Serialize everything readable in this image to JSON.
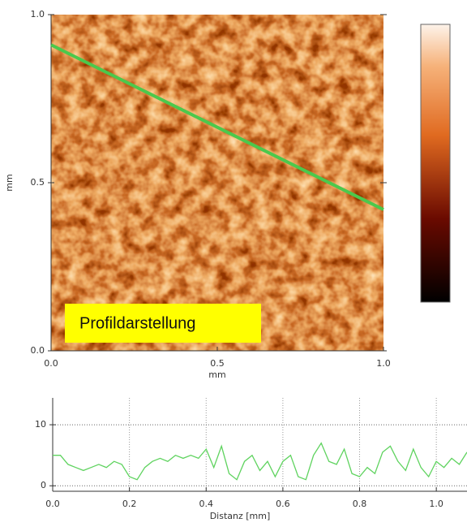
{
  "chart_data": [
    {
      "type": "heatmap",
      "xlabel": "mm",
      "ylabel": "mm",
      "xlim": [
        0,
        1
      ],
      "ylim": [
        0,
        1
      ],
      "xticks": [
        {
          "value": 0,
          "label": "0.0"
        },
        0.5,
        {
          "value": 1,
          "label": "1.0"
        }
      ],
      "yticks": [
        {
          "value": 0,
          "label": "0.0"
        },
        0.5,
        {
          "value": 1,
          "label": "1.0"
        }
      ],
      "line": {
        "color": "#4cc84c",
        "x": [
          0,
          1
        ],
        "y": [
          0.91,
          0.42
        ]
      },
      "annotation": "Profildarstellung"
    },
    {
      "type": "line",
      "xlabel": "Distanz [mm]",
      "xlim": [
        0,
        1.08
      ],
      "ylim": [
        -0.9,
        14.4
      ],
      "xticks": [
        {
          "value": 0,
          "label": "0.0"
        },
        0.2,
        0.4,
        0.6,
        0.8,
        {
          "value": 1,
          "label": "1.0"
        }
      ],
      "yticks": [
        0,
        10
      ],
      "grid": true,
      "color": "#5fd35f",
      "x": [
        0,
        0.02,
        0.04,
        0.06,
        0.08,
        0.1,
        0.12,
        0.14,
        0.16,
        0.18,
        0.2,
        0.22,
        0.24,
        0.26,
        0.28,
        0.3,
        0.32,
        0.34,
        0.36,
        0.38,
        0.4,
        0.42,
        0.44,
        0.46,
        0.48,
        0.5,
        0.52,
        0.54,
        0.56,
        0.58,
        0.6,
        0.62,
        0.64,
        0.66,
        0.68,
        0.7,
        0.72,
        0.74,
        0.76,
        0.78,
        0.8,
        0.82,
        0.84,
        0.86,
        0.88,
        0.9,
        0.92,
        0.94,
        0.96,
        0.98,
        1.0,
        1.02,
        1.04,
        1.06,
        1.08
      ],
      "values": [
        5,
        5,
        3.5,
        3,
        2.5,
        3,
        3.5,
        3,
        4,
        3.5,
        1.5,
        1,
        3,
        4,
        4.5,
        4,
        5,
        4.5,
        5,
        4.5,
        6,
        3,
        6.5,
        2,
        1,
        4,
        5,
        2.5,
        4,
        1.5,
        4,
        5,
        1.5,
        1,
        5,
        7,
        4,
        3.5,
        6,
        2,
        1.5,
        3,
        2,
        5.5,
        6.5,
        4,
        2.5,
        6,
        3,
        1.5,
        4,
        3,
        4.5,
        3.5,
        5.5
      ]
    }
  ]
}
